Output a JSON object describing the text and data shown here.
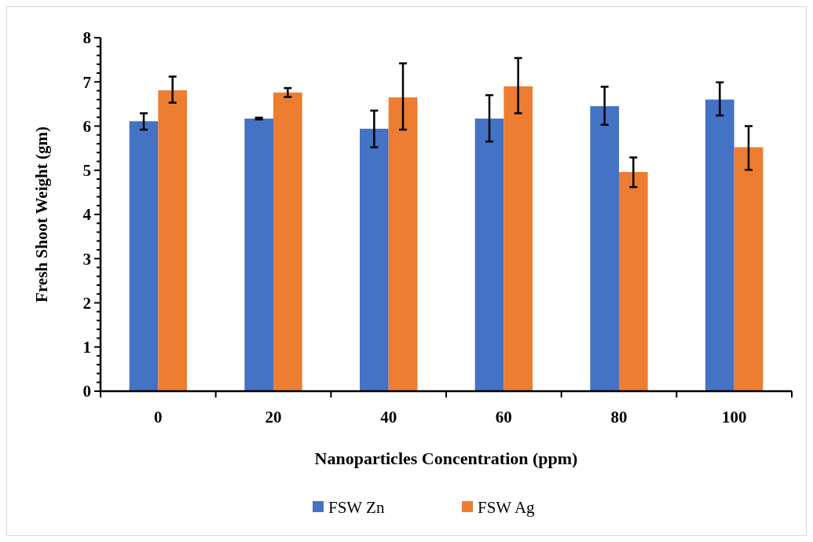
{
  "chart_data": {
    "type": "bar",
    "xlabel": "Nanoparticles Concentration (ppm)",
    "ylabel": "Fresh Shoot Weight (gm)",
    "categories": [
      "0",
      "20",
      "40",
      "60",
      "80",
      "100"
    ],
    "series": [
      {
        "name": "FSW Zn",
        "color": "#4472c4",
        "values": [
          6.11,
          6.17,
          5.94,
          6.17,
          6.45,
          6.6
        ],
        "errors": [
          [
            5.92,
            6.29
          ],
          [
            6.15,
            6.19
          ],
          [
            5.52,
            6.35
          ],
          [
            5.65,
            6.7
          ],
          [
            6.03,
            6.89
          ],
          [
            6.24,
            6.99
          ]
        ]
      },
      {
        "name": "FSW Ag",
        "color": "#ed7d31",
        "values": [
          6.81,
          6.76,
          6.65,
          6.9,
          4.96,
          5.52
        ],
        "errors": [
          [
            6.53,
            7.12
          ],
          [
            6.66,
            6.86
          ],
          [
            5.92,
            7.42
          ],
          [
            6.29,
            7.54
          ],
          [
            4.62,
            5.29
          ],
          [
            5.01,
            6.0
          ]
        ]
      }
    ],
    "ylim": [
      0,
      8
    ],
    "yticks": [
      0,
      {
        "value": 0.2,
        "label": null
      },
      {
        "value": 0.4,
        "label": null
      },
      {
        "value": 0.6,
        "label": null
      },
      {
        "value": 0.8,
        "label": null
      },
      1,
      {
        "value": 1.2,
        "label": null
      },
      {
        "value": 1.4,
        "label": null
      },
      {
        "value": 1.6,
        "label": null
      },
      {
        "value": 1.8,
        "label": null
      },
      2,
      {
        "value": 2.2,
        "label": null
      },
      {
        "value": 2.4,
        "label": null
      },
      {
        "value": 2.6,
        "label": null
      },
      {
        "value": 2.8,
        "label": null
      },
      3,
      {
        "value": 3.2,
        "label": null
      },
      {
        "value": 3.4,
        "label": null
      },
      {
        "value": 3.6,
        "label": null
      },
      {
        "value": 3.8,
        "label": null
      },
      4,
      {
        "value": 4.2,
        "label": null
      },
      {
        "value": 4.4,
        "label": null
      },
      {
        "value": 4.6,
        "label": null
      },
      {
        "value": 4.8,
        "label": null
      },
      5,
      {
        "value": 5.2,
        "label": null
      },
      {
        "value": 5.4,
        "label": null
      },
      {
        "value": 5.6,
        "label": null
      },
      {
        "value": 5.8,
        "label": null
      },
      6,
      {
        "value": 6.2,
        "label": null
      },
      {
        "value": 6.4,
        "label": null
      },
      {
        "value": 6.6,
        "label": null
      },
      {
        "value": 6.8,
        "label": null
      },
      7,
      {
        "value": 7.2,
        "label": null
      },
      {
        "value": 7.4,
        "label": null
      },
      {
        "value": 7.6,
        "label": null
      },
      {
        "value": 7.8,
        "label": null
      },
      8
    ],
    "grid": false,
    "legend": "bottom"
  }
}
